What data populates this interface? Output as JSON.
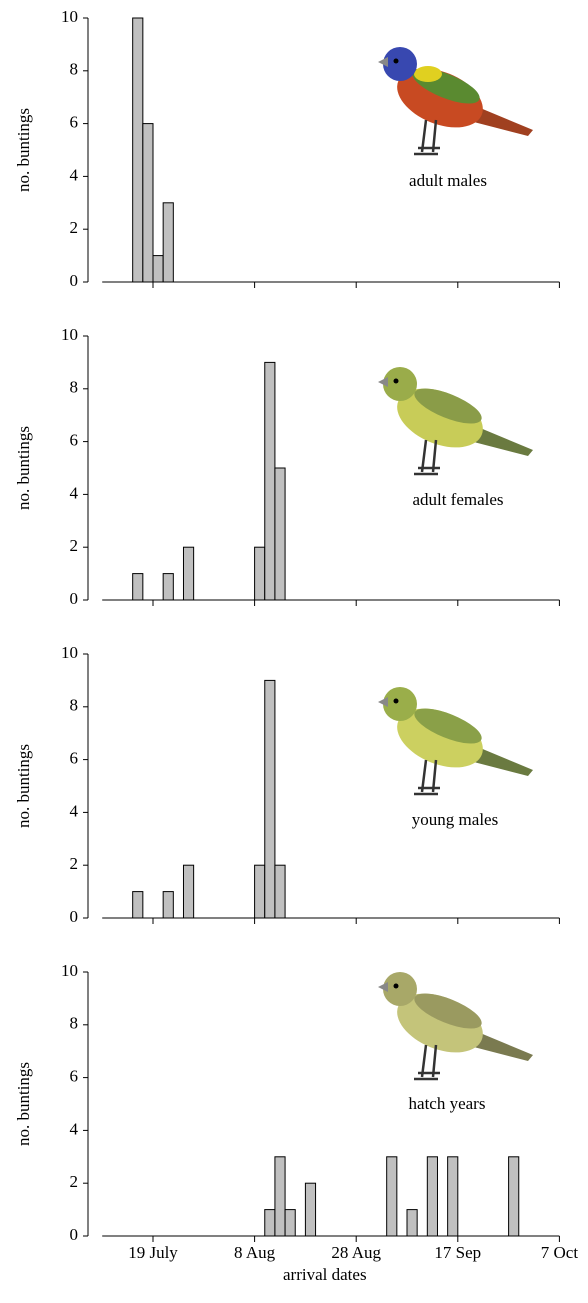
{
  "chart_data": [
    {
      "type": "histogram",
      "ylabel": "no. buntings",
      "annotation": "adult males",
      "color": "#c0c0c0",
      "bins": [
        190,
        192,
        194,
        196,
        198,
        200,
        202,
        204,
        206,
        208,
        210,
        212,
        214,
        216,
        218,
        220,
        222,
        224,
        226,
        228,
        230,
        232,
        234,
        236,
        238,
        240,
        242,
        244,
        246,
        248,
        250,
        252,
        254,
        256,
        258,
        260,
        262,
        264,
        266,
        268,
        270,
        272,
        274,
        276,
        278,
        280
      ],
      "values": [
        0,
        0,
        0,
        10,
        6,
        1,
        3,
        0,
        0,
        0,
        0,
        0,
        0,
        0,
        0,
        0,
        0,
        0,
        0,
        0,
        0,
        0,
        0,
        0,
        0,
        0,
        0,
        0,
        0,
        0,
        0,
        0,
        0,
        0,
        0,
        0,
        0,
        0,
        0,
        0,
        0,
        0,
        0,
        0,
        0
      ],
      "ylim": [
        0,
        10
      ],
      "yticks": [
        0,
        2,
        4,
        6,
        8,
        10
      ],
      "xlim": [
        190,
        280
      ],
      "xticks": [
        200,
        220,
        240,
        260,
        280
      ]
    },
    {
      "type": "histogram",
      "ylabel": "no. buntings",
      "annotation": "adult females",
      "color": "#c0c0c0",
      "bins": [
        190,
        192,
        194,
        196,
        198,
        200,
        202,
        204,
        206,
        208,
        210,
        212,
        214,
        216,
        218,
        220,
        222,
        224,
        226,
        228,
        230,
        232,
        234,
        236,
        238,
        240,
        242,
        244,
        246,
        248,
        250,
        252,
        254,
        256,
        258,
        260,
        262,
        264,
        266,
        268,
        270,
        272,
        274,
        276,
        278,
        280
      ],
      "values": [
        0,
        0,
        0,
        1,
        0,
        0,
        1,
        0,
        2,
        0,
        0,
        0,
        0,
        0,
        0,
        2,
        9,
        5,
        0,
        0,
        0,
        0,
        0,
        0,
        0,
        0,
        0,
        0,
        0,
        0,
        0,
        0,
        0,
        0,
        0,
        0,
        0,
        0,
        0,
        0,
        0,
        0,
        0,
        0,
        0
      ],
      "ylim": [
        0,
        10
      ],
      "yticks": [
        0,
        2,
        4,
        6,
        8,
        10
      ],
      "xlim": [
        190,
        280
      ],
      "xticks": [
        200,
        220,
        240,
        260,
        280
      ]
    },
    {
      "type": "histogram",
      "ylabel": "no. buntings",
      "annotation": "young males",
      "color": "#c0c0c0",
      "bins": [
        190,
        192,
        194,
        196,
        198,
        200,
        202,
        204,
        206,
        208,
        210,
        212,
        214,
        216,
        218,
        220,
        222,
        224,
        226,
        228,
        230,
        232,
        234,
        236,
        238,
        240,
        242,
        244,
        246,
        248,
        250,
        252,
        254,
        256,
        258,
        260,
        262,
        264,
        266,
        268,
        270,
        272,
        274,
        276,
        278,
        280
      ],
      "values": [
        0,
        0,
        0,
        1,
        0,
        0,
        1,
        0,
        2,
        0,
        0,
        0,
        0,
        0,
        0,
        2,
        9,
        2,
        0,
        0,
        0,
        0,
        0,
        0,
        0,
        0,
        0,
        0,
        0,
        0,
        0,
        0,
        0,
        0,
        0,
        0,
        0,
        0,
        0,
        0,
        0,
        0,
        0,
        0,
        0
      ],
      "ylim": [
        0,
        10
      ],
      "yticks": [
        0,
        2,
        4,
        6,
        8,
        10
      ],
      "xlim": [
        190,
        280
      ],
      "xticks": [
        200,
        220,
        240,
        260,
        280
      ]
    },
    {
      "type": "histogram",
      "ylabel": "no. buntings",
      "annotation": "hatch years",
      "xlabel": "arrival dates",
      "color": "#c0c0c0",
      "bins": [
        190,
        192,
        194,
        196,
        198,
        200,
        202,
        204,
        206,
        208,
        210,
        212,
        214,
        216,
        218,
        220,
        222,
        224,
        226,
        228,
        230,
        232,
        234,
        236,
        238,
        240,
        242,
        244,
        246,
        248,
        250,
        252,
        254,
        256,
        258,
        260,
        262,
        264,
        266,
        268,
        270,
        272,
        274,
        276,
        278,
        280
      ],
      "values": [
        0,
        0,
        0,
        0,
        0,
        0,
        0,
        0,
        0,
        0,
        0,
        0,
        0,
        0,
        0,
        0,
        1,
        3,
        1,
        0,
        2,
        0,
        0,
        0,
        0,
        0,
        0,
        0,
        3,
        0,
        1,
        0,
        3,
        0,
        3,
        0,
        0,
        0,
        0,
        0,
        3,
        0,
        0,
        0,
        0
      ],
      "ylim": [
        0,
        10
      ],
      "yticks": [
        0,
        2,
        4,
        6,
        8,
        10
      ],
      "xlim": [
        190,
        280
      ],
      "xticks": [
        {
          "value": 200,
          "label": "19 July"
        },
        {
          "value": 220,
          "label": "8 Aug"
        },
        {
          "value": 240,
          "label": "28 Aug"
        },
        {
          "value": 260,
          "label": "17 Sep"
        },
        {
          "value": 280,
          "label": "7 Oct"
        }
      ]
    }
  ]
}
